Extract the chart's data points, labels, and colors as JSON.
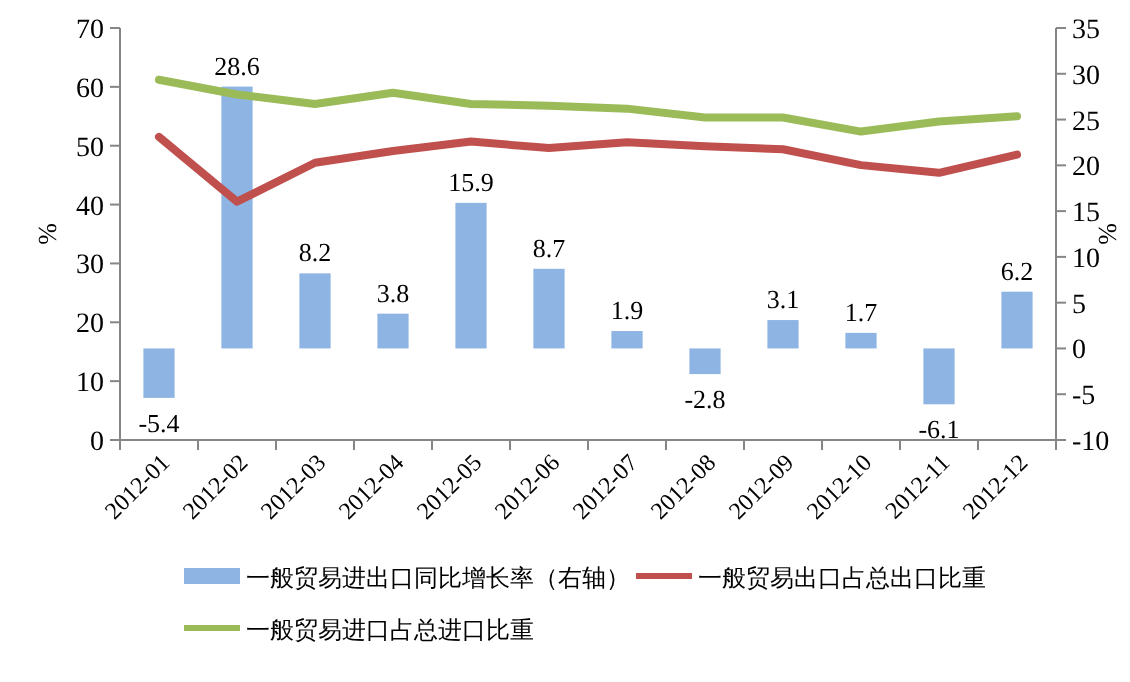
{
  "chart_data": {
    "type": "bar",
    "categories": [
      "2012-01",
      "2012-02",
      "2012-03",
      "2012-04",
      "2012-05",
      "2012-06",
      "2012-07",
      "2012-08",
      "2012-09",
      "2012-10",
      "2012-11",
      "2012-12"
    ],
    "ylabel": "%",
    "y2label": "%",
    "ylim": [
      0,
      70
    ],
    "yticks": [
      0,
      10,
      20,
      30,
      40,
      50,
      60,
      70
    ],
    "y2lim": [
      -10,
      35
    ],
    "y2ticks": [
      {
        "value": -10,
        "label": "-10"
      },
      {
        "value": -5,
        "label": "-5"
      },
      0,
      5,
      10,
      15,
      20,
      25,
      30,
      35
    ],
    "grid": false,
    "legend": "bottom",
    "series": [
      {
        "name": "一般贸易进出口同比增长率（右轴）",
        "axis": "y2",
        "color": "#8db4e2",
        "values": [
          -5.4,
          28.6,
          8.2,
          3.8,
          15.9,
          8.7,
          1.9,
          -2.8,
          3.1,
          1.7,
          -6.1,
          6.2
        ],
        "value_labels": [
          "-5.4",
          "28.6",
          "8.2",
          "3.8",
          "15.9",
          "8.7",
          "1.9",
          "-2.8",
          "3.1",
          "1.7",
          "-6.1",
          "6.2"
        ]
      },
      {
        "name": "一般贸易出口占总出口比重",
        "type": "line",
        "axis": "y",
        "color": "#c0504d",
        "values": [
          51.5,
          40.5,
          47.1,
          49.1,
          50.7,
          49.6,
          50.6,
          49.9,
          49.4,
          46.7,
          45.4,
          48.5
        ]
      },
      {
        "name": "一般贸易进口占总进口比重",
        "type": "line",
        "axis": "y",
        "color": "#9bbb59",
        "values": [
          61.2,
          58.7,
          57.1,
          59.0,
          57.1,
          56.8,
          56.3,
          54.8,
          54.8,
          52.4,
          54.1,
          55.0
        ]
      }
    ]
  }
}
